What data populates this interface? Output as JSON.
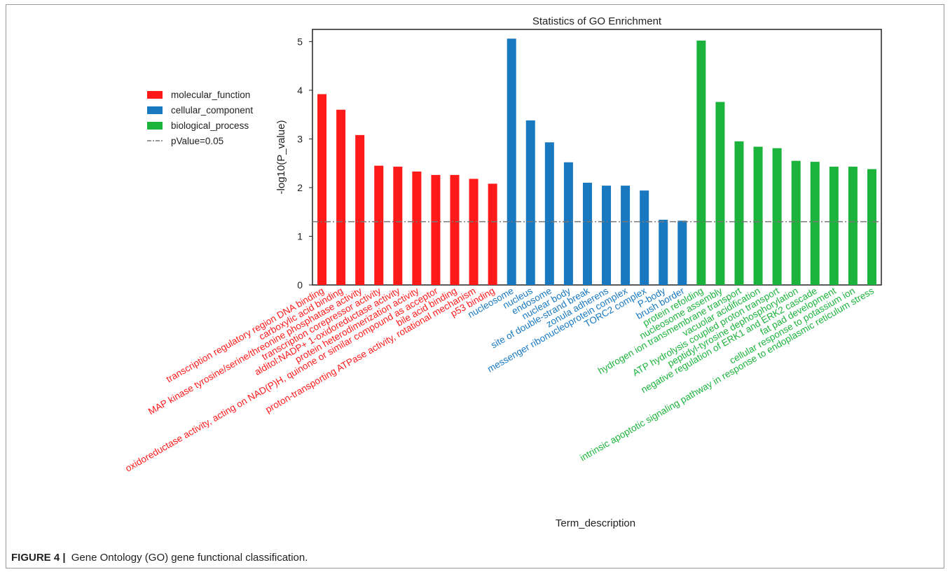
{
  "chart_data": {
    "type": "bar",
    "title": "Statistics of GO Enrichment",
    "xlabel": "Term_description",
    "ylabel": "-log10(P_value)",
    "ylim": [
      0,
      5.25
    ],
    "yticks": [
      0,
      1,
      2,
      3,
      4,
      5
    ],
    "threshold": {
      "label": "pValue=0.05",
      "value": 1.3
    },
    "legend_position": "left",
    "series": [
      {
        "name": "molecular_function",
        "color": "#ff1a1a",
        "categories": [
          "transcription regulatory region DNA binding",
          "carboxylic acid binding",
          "MAP kinase tyrosine/serine/threonine phosphatase activity",
          "transcription corepressor activity",
          "alditol:NADP+ 1-oxidoreductase activity",
          "protein heterodimerization activity",
          "oxidoreductase activity, acting on NAD(P)H, quinone or similar compound as acceptor",
          "bile acid binding",
          "proton-transporting ATPase activity, rotational mechanism",
          "p53 binding"
        ],
        "values": [
          3.92,
          3.6,
          3.08,
          2.45,
          2.43,
          2.33,
          2.26,
          2.26,
          2.18,
          2.08
        ]
      },
      {
        "name": "cellular_component",
        "color": "#1878c0",
        "categories": [
          "nucleosome",
          "nucleus",
          "endosome",
          "nuclear body",
          "site of double-strand break",
          "zonula adherens",
          "messenger ribonucleoprotein complex",
          "TORC2 complex",
          "P-body",
          "brush border"
        ],
        "values": [
          5.06,
          3.38,
          2.93,
          2.52,
          2.1,
          2.04,
          2.04,
          1.94,
          1.34,
          1.32
        ]
      },
      {
        "name": "biological_process",
        "color": "#1cb33c",
        "categories": [
          "protein refolding",
          "nucleosome assembly",
          "hydrogen ion transmembrane transport",
          "vacuolar acidification",
          "ATP hydrolysis coupled proton transport",
          "peptidyl-tyrosine dephosphorylation",
          "negative regulation of ERK1 and ERK2 cascade",
          "fat pad development",
          "cellular response to potassium ion",
          "intrinsic apoptotic signaling pathway in response to endoplasmic reticulum stress"
        ],
        "values": [
          5.02,
          3.76,
          2.95,
          2.84,
          2.81,
          2.55,
          2.53,
          2.43,
          2.43,
          2.38
        ]
      }
    ]
  },
  "caption": {
    "label": "FIGURE 4 |",
    "text": "Gene Ontology (GO) gene functional classification."
  }
}
